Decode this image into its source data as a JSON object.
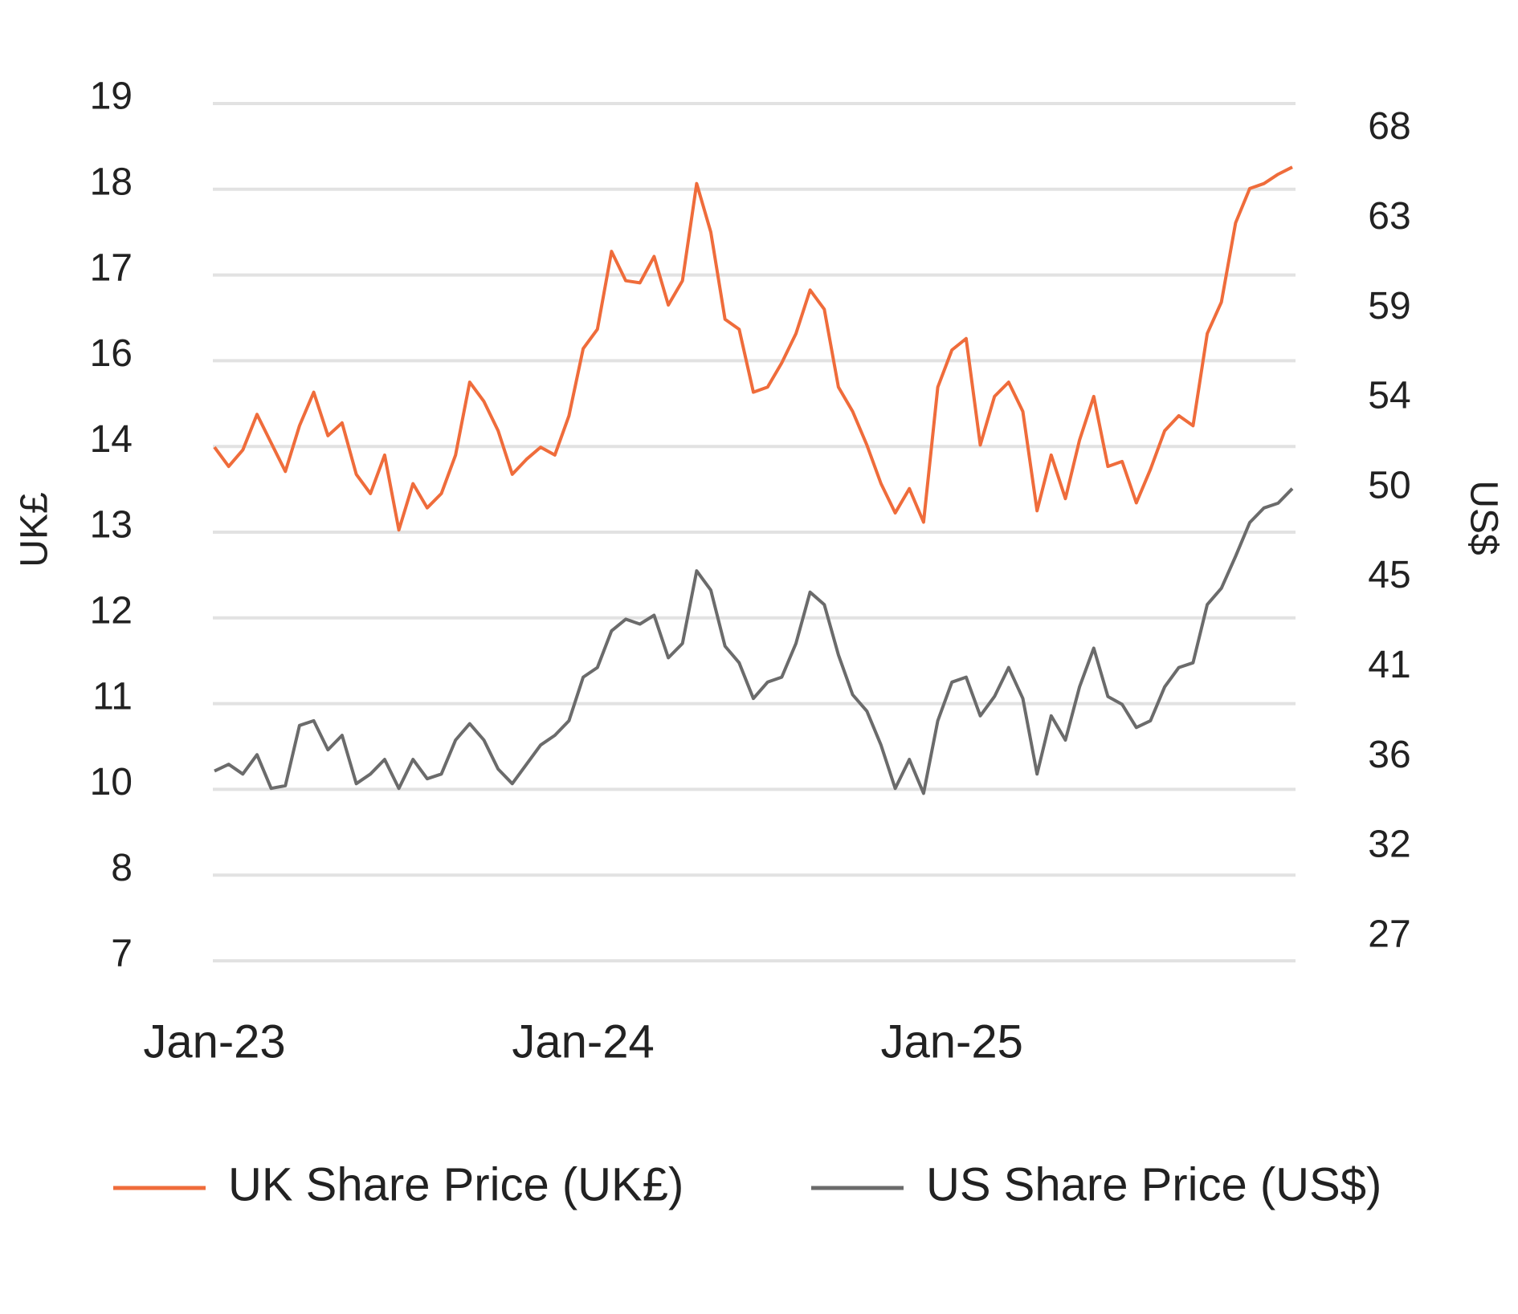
{
  "chart_data": {
    "type": "line",
    "y_label": "UK£",
    "y2_label": "US$",
    "categories": [
      "Jan-23",
      null,
      null,
      null,
      null,
      null,
      null,
      null,
      null,
      null,
      null,
      null,
      null,
      null,
      null,
      null,
      null,
      null,
      null,
      null,
      null,
      null,
      null,
      null,
      null,
      null,
      "Jan-24",
      null,
      null,
      null,
      null,
      null,
      null,
      null,
      null,
      null,
      null,
      null,
      null,
      null,
      null,
      null,
      null,
      null,
      null,
      null,
      null,
      null,
      null,
      null,
      null,
      null,
      "Jan-25",
      null,
      null,
      null,
      null,
      null,
      null,
      null,
      null,
      null,
      null,
      null,
      null,
      null,
      null,
      null,
      null,
      null,
      null,
      null,
      null,
      null,
      null,
      null,
      null
    ],
    "series": [
      {
        "name": "UK Share Price (UK£)",
        "color": "#ef6c3b",
        "values": [
          14.39,
          14.12,
          14.35,
          14.85,
          14.45,
          14.05,
          14.69,
          15.16,
          14.55,
          14.73,
          14.01,
          13.74,
          14.28,
          13.23,
          13.88,
          13.54,
          13.74,
          14.28,
          15.3,
          15.03,
          14.62,
          14.01,
          14.22,
          14.39,
          14.28,
          14.83,
          15.77,
          16.04,
          17.13,
          16.72,
          16.69,
          17.06,
          16.38,
          16.72,
          18.08,
          17.4,
          16.18,
          16.04,
          15.16,
          15.23,
          15.57,
          15.98,
          16.59,
          16.32,
          15.23,
          14.89,
          14.42,
          13.88,
          13.47,
          13.81,
          13.34,
          15.23,
          15.75,
          15.91,
          14.42,
          15.1,
          15.3,
          14.89,
          13.5,
          14.28,
          13.67,
          14.49,
          15.1,
          14.12,
          14.19,
          13.61,
          14.08,
          14.62,
          14.83,
          14.69,
          15.98,
          16.42,
          17.53,
          18.01,
          18.08,
          18.21,
          18.31
        ]
      },
      {
        "name": "US Share Price (US$)",
        "color": "#6b6b6b",
        "axis": "y2",
        "values": [
          35.39,
          35.73,
          35.24,
          36.22,
          34.51,
          34.65,
          37.7,
          37.94,
          36.47,
          37.2,
          34.75,
          35.24,
          35.98,
          34.51,
          35.98,
          35.0,
          35.24,
          36.96,
          37.79,
          36.96,
          35.49,
          34.75,
          35.73,
          36.71,
          37.2,
          37.94,
          40.15,
          40.64,
          42.5,
          43.09,
          42.84,
          43.29,
          41.13,
          41.86,
          45.54,
          44.56,
          41.72,
          40.88,
          39.07,
          39.9,
          40.15,
          41.86,
          44.46,
          43.83,
          41.28,
          39.26,
          38.43,
          36.71,
          34.51,
          35.98,
          34.26,
          37.94,
          39.9,
          40.15,
          38.19,
          39.17,
          40.64,
          39.07,
          35.24,
          38.19,
          36.96,
          39.66,
          41.62,
          39.17,
          38.77,
          37.6,
          37.94,
          39.66,
          40.64,
          40.88,
          43.83,
          44.66,
          46.28,
          47.99,
          48.73,
          48.97,
          49.71
        ]
      }
    ],
    "ylim": [
      7.2,
      19.2
    ],
    "yticks": [
      {
        "value": 7.2,
        "label": "7"
      },
      {
        "value": 8.4,
        "label": "8"
      },
      {
        "value": 9.6,
        "label": "10"
      },
      {
        "value": 10.8,
        "label": "11"
      },
      {
        "value": 12,
        "label": "12"
      },
      {
        "value": 13.2,
        "label": "13"
      },
      {
        "value": 14.4,
        "label": "14"
      },
      {
        "value": 15.6,
        "label": "16"
      },
      {
        "value": 16.8,
        "label": "17"
      },
      {
        "value": 18,
        "label": "18"
      },
      {
        "value": 19.2,
        "label": "19"
      }
    ],
    "y2lim": [
      25.77,
      69.23
    ],
    "y2ticks": [
      27,
      {
        "value": 31.55,
        "label": "32"
      },
      {
        "value": 36.1,
        "label": "36"
      },
      {
        "value": 40.65,
        "label": "41"
      },
      {
        "value": 45.2,
        "label": "45"
      },
      {
        "value": 49.75,
        "label": "50"
      },
      {
        "value": 54.3,
        "label": "54"
      },
      {
        "value": 58.85,
        "label": "59"
      },
      {
        "value": 63.4,
        "label": "63"
      },
      {
        "value": 67.95,
        "label": "68"
      }
    ],
    "grid": true,
    "legend": "bottom"
  }
}
